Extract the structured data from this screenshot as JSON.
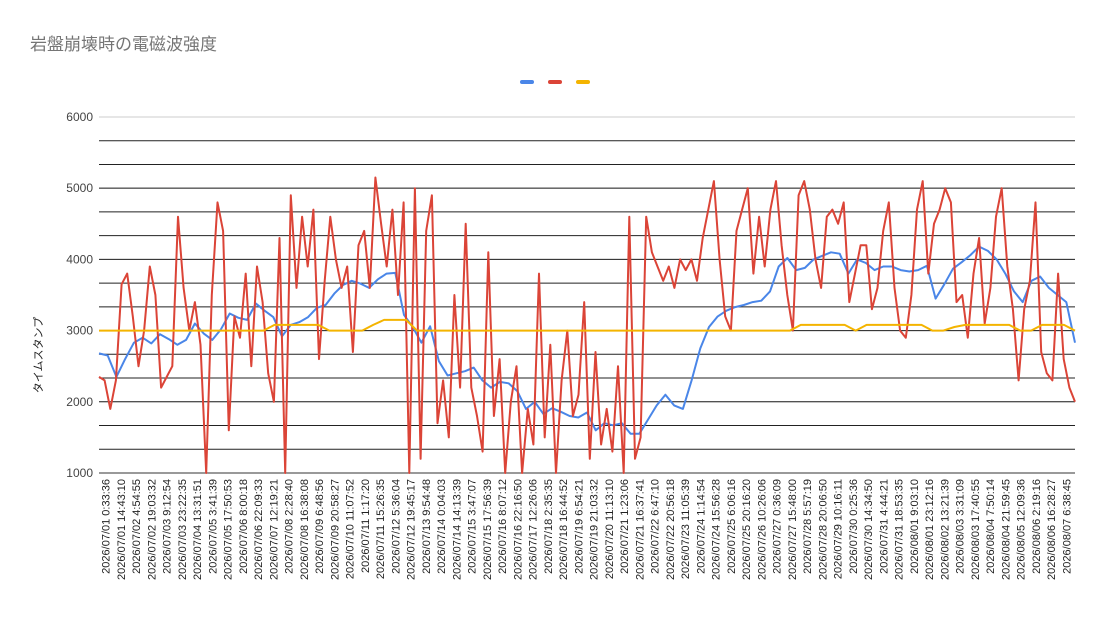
{
  "chart_data": {
    "type": "line",
    "title": "岩盤崩壊時の電磁波強度",
    "ylabel": "タイムスタンプ",
    "xlabel": "",
    "ylim": [
      1000,
      6000
    ],
    "y_ticks": [
      1000,
      2000,
      3000,
      4000,
      5000,
      6000
    ],
    "grid": true,
    "legend_position": "top",
    "x_tick_labels": [
      "2026/07/01 0:33:36",
      "2026/07/01 14:43:10",
      "2026/07/02 4:54:55",
      "2026/07/02 19:03:32",
      "2026/07/03 9:12:54",
      "2026/07/03 23:22:35",
      "2026/07/04 13:31:51",
      "2026/07/05 3:41:39",
      "2026/07/05 17:50:53",
      "2026/07/06 8:00:18",
      "2026/07/06 22:09:33",
      "2026/07/07 12:19:21",
      "2026/07/08 2:28:40",
      "2026/07/08 16:38:08",
      "2026/07/09 6:48:56",
      "2026/07/09 20:58:27",
      "2026/07/10 11:07:52",
      "2026/07/11 1:17:20",
      "2026/07/11 15:26:35",
      "2026/07/12 5:36:04",
      "2026/07/12 19:45:17",
      "2026/07/13 9:54:48",
      "2026/07/14 0:04:03",
      "2026/07/14 14:13:39",
      "2026/07/15 3:47:07",
      "2026/07/15 17:56:39",
      "2026/07/16 8:07:12",
      "2026/07/16 22:16:50",
      "2026/07/17 12:26:06",
      "2026/07/18 2:35:35",
      "2026/07/18 16:44:52",
      "2026/07/19 6:54:21",
      "2026/07/19 21:03:32",
      "2026/07/20 11:13:10",
      "2026/07/21 1:23:06",
      "2026/07/21 16:37:41",
      "2026/07/22 6:47:10",
      "2026/07/22 20:56:18",
      "2026/07/23 11:05:39",
      "2026/07/24 1:14:54",
      "2026/07/24 15:56:28",
      "2026/07/25 6:06:16",
      "2026/07/25 20:16:20",
      "2026/07/26 10:26:06",
      "2026/07/27 0:36:09",
      "2026/07/27 15:48:00",
      "2026/07/28 5:57:19",
      "2026/07/28 20:06:50",
      "2026/07/29 10:16:11",
      "2026/07/30 0:25:36",
      "2026/07/30 14:34:50",
      "2026/07/31 4:44:21",
      "2026/07/31 18:53:35",
      "2026/08/01 9:03:10",
      "2026/08/01 23:12:16",
      "2026/08/02 13:21:39",
      "2026/08/03 3:31:09",
      "2026/08/03 17:40:55",
      "2026/08/04 7:50:14",
      "2026/08/04 21:59:45",
      "2026/08/05 12:09:36",
      "2026/08/06 2:19:16",
      "2026/08/06 16:28:27",
      "2026/08/07 6:38:45"
    ],
    "series": [
      {
        "name": "",
        "color": "#4a86e8",
        "values": [
          2680,
          2650,
          2350,
          2600,
          2830,
          2900,
          2820,
          2950,
          2880,
          2800,
          2870,
          3100,
          2960,
          2870,
          3020,
          3240,
          3180,
          3150,
          3380,
          3280,
          3190,
          2920,
          3080,
          3120,
          3190,
          3320,
          3360,
          3520,
          3640,
          3700,
          3660,
          3600,
          3720,
          3800,
          3810,
          3220,
          3050,
          2830,
          3060,
          2570,
          2370,
          2400,
          2430,
          2480,
          2300,
          2200,
          2280,
          2260,
          2150,
          1900,
          2000,
          1830,
          1910,
          1860,
          1800,
          1780,
          1850,
          1600,
          1700,
          1670,
          1700,
          1550,
          1550,
          1750,
          1950,
          2100,
          1950,
          1900,
          2300,
          2750,
          3050,
          3200,
          3280,
          3330,
          3360,
          3400,
          3420,
          3550,
          3900,
          4020,
          3850,
          3880,
          4000,
          4050,
          4100,
          4080,
          3800,
          4000,
          3950,
          3850,
          3900,
          3900,
          3850,
          3830,
          3850,
          3910,
          3450,
          3650,
          3870,
          3960,
          4060,
          4180,
          4120,
          4000,
          3800,
          3550,
          3400,
          3700,
          3760,
          3600,
          3500,
          3400,
          2830
        ]
      },
      {
        "name": "",
        "color": "#db4437",
        "values": [
          2350,
          2300,
          1900,
          2300,
          3650,
          3800,
          3200,
          2500,
          3000,
          3900,
          3500,
          2200,
          2350,
          2500,
          4600,
          3600,
          3000,
          3400,
          2800,
          1000,
          3500,
          4800,
          4400,
          1600,
          3200,
          2900,
          3800,
          2500,
          3900,
          3400,
          2400,
          2000,
          4300,
          1000,
          4900,
          3600,
          4600,
          3900,
          4700,
          2600,
          3700,
          4600,
          4000,
          3600,
          3900,
          2700,
          4200,
          4400,
          3600,
          5150,
          4500,
          3900,
          4700,
          3500,
          4800,
          1000,
          5000,
          1200,
          4400,
          4900,
          1700,
          2300,
          1500,
          3500,
          2200,
          4500,
          2200,
          1800,
          1300,
          4100,
          1800,
          2600,
          1000,
          2000,
          2500,
          1000,
          1900,
          1400,
          3800,
          1500,
          2800,
          1000,
          2300,
          3000,
          1800,
          2100,
          3400,
          1200,
          2700,
          1400,
          1900,
          1300,
          2500,
          1000,
          4600,
          1200,
          1500,
          4600,
          4100,
          3900,
          3700,
          3900,
          3600,
          4000,
          3850,
          4000,
          3700,
          4300,
          4700,
          5100,
          4000,
          3200,
          3000,
          4400,
          4700,
          5000,
          3800,
          4600,
          3900,
          4700,
          5100,
          4200,
          3500,
          3000,
          4900,
          5100,
          4700,
          4000,
          3600,
          4600,
          4700,
          4500,
          4800,
          3400,
          3800,
          4200,
          4200,
          3300,
          3600,
          4400,
          4800,
          3600,
          3000,
          2900,
          3500,
          4700,
          5100,
          3800,
          4500,
          4700,
          5000,
          4800,
          3400,
          3500,
          2900,
          3800,
          4300,
          3100,
          3600,
          4600,
          5000,
          3900,
          3300,
          2300,
          3300,
          3700,
          4800,
          2700,
          2400,
          2300,
          3800,
          2600,
          2200,
          2000
        ]
      },
      {
        "name": "",
        "color": "#f4b400",
        "values": [
          3000,
          3000,
          3000,
          3000,
          3000,
          3000,
          3000,
          3000,
          3000,
          3000,
          3000,
          3000,
          3000,
          3000,
          3000,
          3000,
          3080,
          3080,
          3080,
          3080,
          3080,
          3000,
          3000,
          3000,
          3000,
          3080,
          3150,
          3150,
          3150,
          3000,
          3000,
          3000,
          3000,
          3000,
          3000,
          3000,
          3000,
          3000,
          3000,
          3000,
          3000,
          3000,
          3000,
          3000,
          3000,
          3000,
          3000,
          3000,
          3000,
          3000,
          3000,
          3000,
          3000,
          3000,
          3000,
          3000,
          3000,
          3000,
          3000,
          3000,
          3000,
          3000,
          3000,
          3000,
          3080,
          3080,
          3080,
          3080,
          3080,
          3000,
          3080,
          3080,
          3080,
          3080,
          3080,
          3080,
          3000,
          3000,
          3050,
          3080,
          3080,
          3080,
          3080,
          3080,
          3000,
          3000,
          3080,
          3080,
          3080,
          3000
        ]
      }
    ]
  }
}
